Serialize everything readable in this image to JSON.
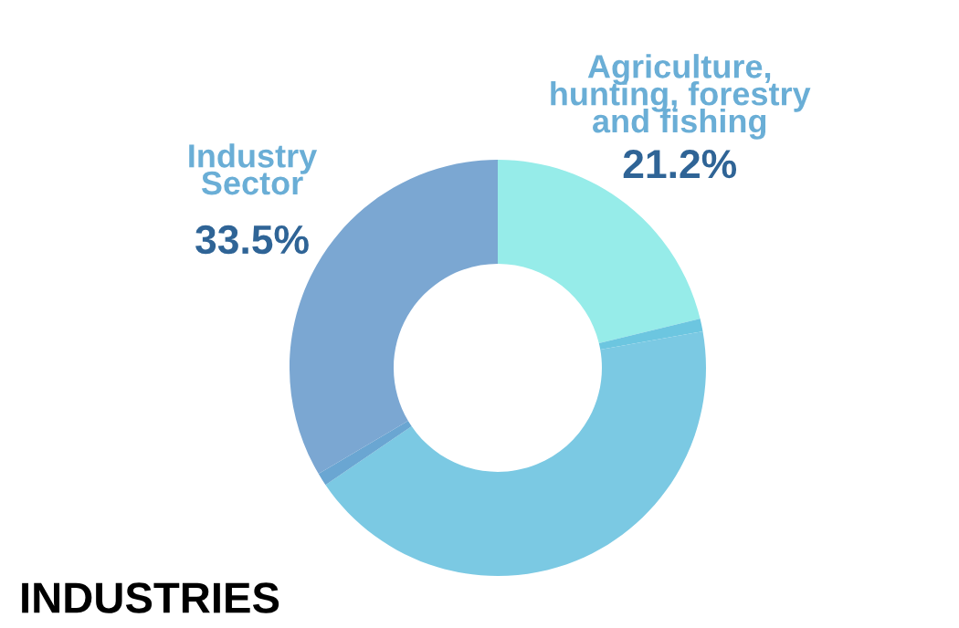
{
  "chart_data": {
    "type": "donut",
    "categories": [
      "Agriculture,\nhunting, forestry\nand fishing",
      null,
      null,
      null,
      "Industry\nSector"
    ],
    "values": [
      21.2,
      1.0,
      43.3,
      1.0,
      33.5
    ],
    "value_labels": [
      "21.2%",
      null,
      null,
      null,
      "33.5%"
    ],
    "colors": [
      "#96ece9",
      "#6cc6e0",
      "#7bc9e3",
      "#6aa6d2",
      "#7ba7d2"
    ],
    "annotations": [
      "INDUSTRIES"
    ]
  }
}
